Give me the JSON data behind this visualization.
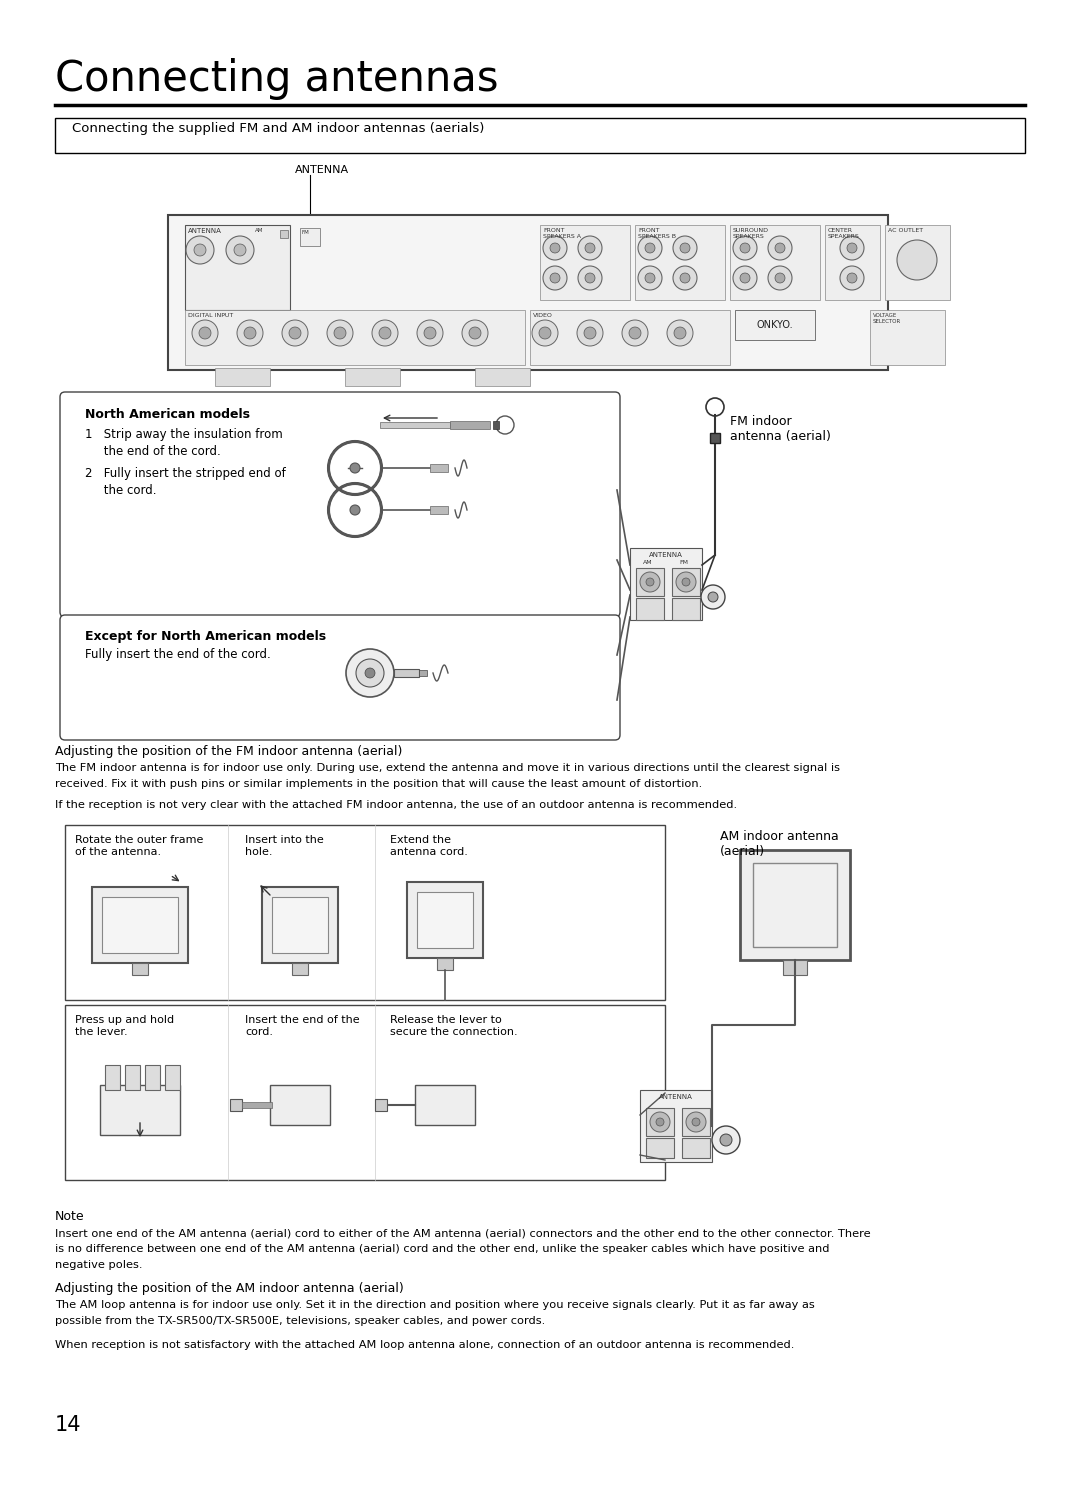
{
  "page_title": "Connecting antennas",
  "section_box_title": "Connecting the supplied FM and AM indoor antennas (aerials)",
  "antenna_label": "ANTENNA",
  "fm_label": "FM indoor\nantenna (aerial)",
  "north_american_title": "North American models",
  "north_american_step1a": "1   Strip away the insulation from",
  "north_american_step1b": "     the end of the cord.",
  "north_american_step2a": "2   Fully insert the stripped end of",
  "north_american_step2b": "     the cord.",
  "except_title": "Except for North American models",
  "except_text": "Fully insert the end of the cord.",
  "fm_adjust_title": "Adjusting the position of the FM indoor antenna (aerial)",
  "fm_adjust_text1": "The FM indoor antenna is for indoor use only. During use, extend the antenna and move it in various directions until the clearest signal is",
  "fm_adjust_text2": "received. Fix it with push pins or similar implements in the position that will cause the least amount of distortion.",
  "fm_adjust_text3": "If the reception is not very clear with the attached FM indoor antenna, the use of an outdoor antenna is recommended.",
  "am_step1_title": "Rotate the outer frame\nof the antenna.",
  "am_step2_title": "Insert into the\nhole.",
  "am_step3_title": "Extend the\nantenna cord.",
  "am_label": "AM indoor antenna\n(aerial)",
  "am_step4_title": "Press up and hold\nthe lever.",
  "am_step5_title": "Insert the end of the\ncord.",
  "am_step6_title": "Release the lever to\nsecure the connection.",
  "note_title": "Note",
  "note_text1": "Insert one end of the AM antenna (aerial) cord to either of the AM antenna (aerial) connectors and the other end to the other connector. There",
  "note_text2": "is no difference between one end of the AM antenna (aerial) cord and the other end, unlike the speaker cables which have positive and",
  "note_text3": "negative poles.",
  "am_adjust_title": "Adjusting the position of the AM indoor antenna (aerial)",
  "am_adjust_text1": "The AM loop antenna is for indoor use only. Set it in the direction and position where you receive signals clearly. Put it as far away as",
  "am_adjust_text2": "possible from the TX-SR500/TX-SR500E, televisions, speaker cables, and power cords.",
  "am_adjust_text3": "When reception is not satisfactory with the attached AM loop antenna alone, connection of an outdoor antenna is recommended.",
  "page_number": "14",
  "bg_color": "#ffffff",
  "text_color": "#000000"
}
